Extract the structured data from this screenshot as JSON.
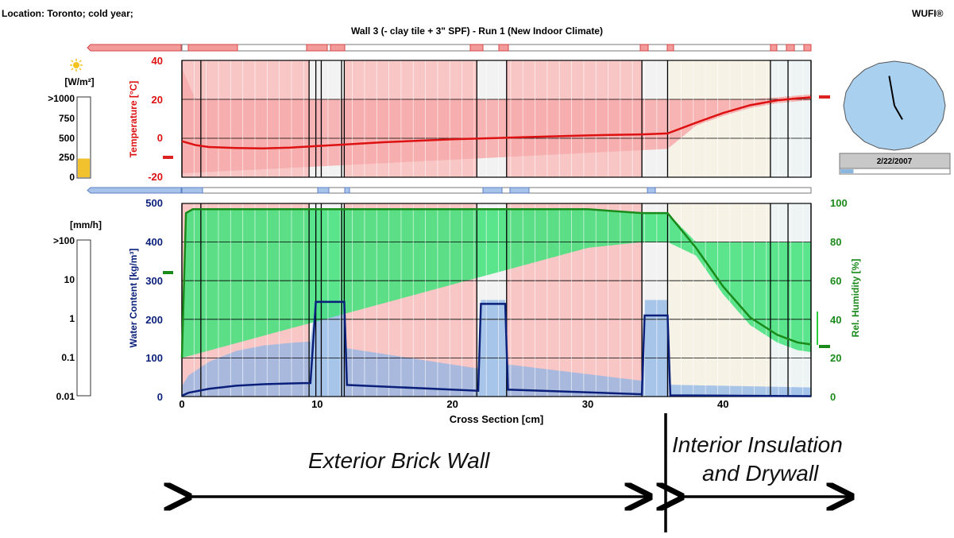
{
  "header": {
    "location": "Location: Toronto; cold year;",
    "title": "Wall 3 (- clay tile + 3\" SPF) - Run 1 (New Indoor Climate)",
    "brand": "WUFI®"
  },
  "radiation_gauge": {
    "unit": "[W/m²]",
    "ticks": [
      ">1000",
      "750",
      "500",
      "250",
      "0"
    ],
    "value": 235,
    "max": 1000,
    "fill_color": "#f2c12e"
  },
  "rain_gauge": {
    "unit": "[mm/h]",
    "ticks": [
      ">100",
      "10",
      "1",
      "0.1",
      "0.01"
    ],
    "value": 0
  },
  "clock": {
    "date": "2/22/2007",
    "hour_hand_deg": -10,
    "minute_hand_deg": 150,
    "progress_fraction": 0.12,
    "face_color": "#a9d0ee"
  },
  "chart_data": [
    {
      "type": "line",
      "title": "",
      "xlabel": "",
      "ylabel": "Temperature [°C]",
      "xlim": [
        0,
        46.5
      ],
      "ylim": [
        -20,
        40
      ],
      "y_ticks": [
        "40",
        "20",
        "0",
        "-20"
      ],
      "band_color": "#f7a9a9",
      "line_color": "#dd1111",
      "series": [
        {
          "x": [
            0,
            1,
            2,
            4,
            6,
            8,
            10,
            12,
            15,
            20,
            25,
            30,
            34,
            35.9,
            38,
            40,
            42,
            44,
            45.5,
            46.5
          ],
          "values": [
            -1.5,
            -3.5,
            -4.5,
            -5.0,
            -5.2,
            -4.8,
            -4.0,
            -3.2,
            -2.0,
            -0.5,
            0.5,
            1.5,
            2.0,
            2.5,
            8,
            13,
            17,
            19.5,
            20.5,
            21
          ]
        }
      ]
    },
    {
      "type": "line",
      "title": "",
      "xlabel": "Cross Section [cm]",
      "ylabel": "Water Content [kg/m³]",
      "y2label": "Rel. Humidity [%]",
      "xlim": [
        0,
        46.5
      ],
      "ylim": [
        0,
        500
      ],
      "y2lim": [
        0,
        100
      ],
      "x_ticks": [
        "0",
        "10",
        "20",
        "30",
        "40"
      ],
      "y_ticks": [
        "500",
        "400",
        "300",
        "200",
        "100",
        "0"
      ],
      "y2_ticks": [
        "100",
        "80",
        "60",
        "40",
        "20",
        "0"
      ],
      "water_color": "#0a1f7a",
      "rh_color": "#1a8a1a",
      "series": [
        {
          "name": "",
          "x": [
            0,
            0.5,
            2,
            4,
            6,
            8,
            9.5,
            9.9,
            10.2,
            12,
            12.2,
            21.9,
            22.1,
            23.9,
            24.1,
            34,
            34.2,
            35.9,
            36.1,
            46.5
          ],
          "values": [
            2,
            10,
            20,
            28,
            32,
            34,
            35,
            245,
            245,
            245,
            30,
            15,
            240,
            240,
            18,
            6,
            210,
            210,
            3,
            1
          ]
        },
        {
          "name": "",
          "x": [
            0,
            0.3,
            0.8,
            3,
            10,
            20,
            30,
            34,
            35.9,
            38,
            40,
            42,
            44,
            45.5,
            46.5
          ],
          "values": [
            20,
            95,
            97,
            97,
            97,
            97,
            97,
            95,
            95,
            77,
            57,
            41,
            32,
            28,
            27
          ]
        }
      ]
    }
  ],
  "layers": [
    {
      "from": 0,
      "to": 9.4,
      "color": "#f9c6c6"
    },
    {
      "from": 9.4,
      "to": 10.3,
      "color": "#f2f2f2"
    },
    {
      "from": 10.3,
      "to": 11.8,
      "color": "#f2f2f2"
    },
    {
      "from": 12.0,
      "to": 21.8,
      "color": "#f9c6c6"
    },
    {
      "from": 21.8,
      "to": 24.0,
      "color": "#f2f2f2"
    },
    {
      "from": 24.0,
      "to": 34.0,
      "color": "#f9c6c6"
    },
    {
      "from": 34.0,
      "to": 35.9,
      "color": "#f2f2f2"
    },
    {
      "from": 35.9,
      "to": 43.5,
      "color": "#f6f2e6"
    },
    {
      "from": 43.5,
      "to": 46.5,
      "color": "#eef4f4"
    }
  ],
  "layer_boundaries": [
    0,
    1.4,
    9.4,
    9.9,
    10.3,
    11.8,
    12.0,
    21.8,
    24.0,
    34.0,
    35.9,
    43.5,
    44.8,
    46.5
  ],
  "annotations": {
    "exterior": "Exterior Brick Wall",
    "interior_line1": "Interior Insulation",
    "interior_line2": "and Drywall"
  }
}
